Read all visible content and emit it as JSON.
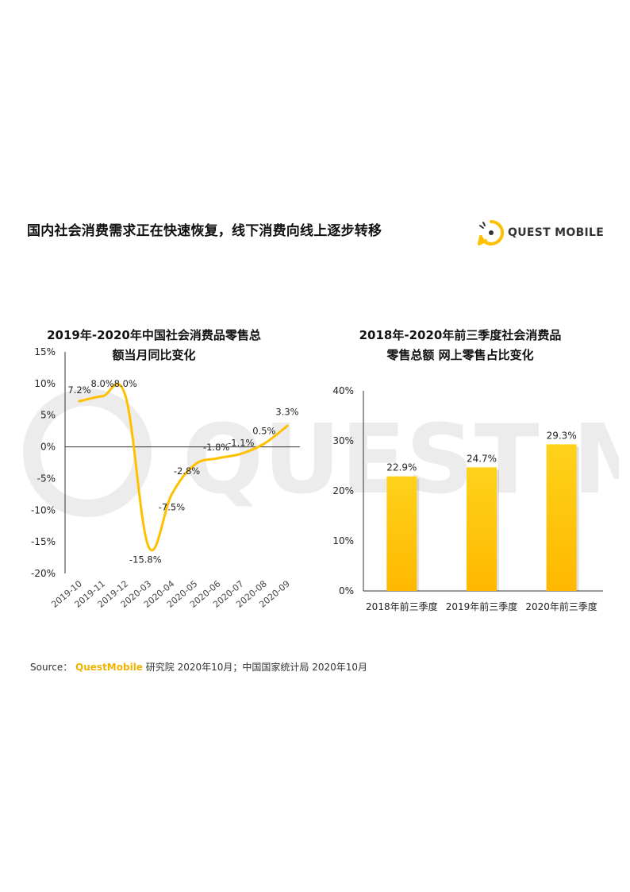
{
  "page": {
    "title": "国内社会消费需求正在快速恢复，线下消费向线上逐步转移",
    "logo_text": "QUEST MOBILE",
    "source_label": "Source：",
    "source_brand": "QuestMobile",
    "source_rest": " 研究院 2020年10月；中国国家统计局 2020年10月",
    "accent_color": "#ffc000"
  },
  "chart_data": [
    {
      "type": "line",
      "title_line1": "2019年-2020年中国社会消费品零售总",
      "title_line2": "额当月同比变化",
      "categories": [
        "2019-10",
        "2019-11",
        "2019-12",
        "2020-03",
        "2020-04",
        "2020-05",
        "2020-06",
        "2020-07",
        "2020-08",
        "2020-09"
      ],
      "values": [
        7.2,
        8.0,
        8.0,
        -15.8,
        -7.5,
        -2.8,
        -1.8,
        -1.1,
        0.5,
        3.3
      ],
      "value_labels": [
        "7.2%",
        "8.0%",
        "8.0%",
        "-15.8%",
        "-7.5%",
        "-2.8%",
        "-1.8%",
        "-1.1%",
        "0.5%",
        "3.3%"
      ],
      "yticks": [
        "15%",
        "10%",
        "5%",
        "0%",
        "-5%",
        "-10%",
        "-15%",
        "-20%"
      ],
      "ylim": [
        -20,
        15
      ],
      "color": "#ffc000"
    },
    {
      "type": "bar",
      "title_line1": "2018年-2020年前三季度社会消费品",
      "title_line2": "零售总额 网上零售占比变化",
      "categories": [
        "2018年前三季度",
        "2019年前三季度",
        "2020年前三季度"
      ],
      "values": [
        22.9,
        24.7,
        29.3
      ],
      "value_labels": [
        "22.9%",
        "24.7%",
        "29.3%"
      ],
      "yticks": [
        "40%",
        "30%",
        "20%",
        "10%",
        "0%"
      ],
      "ylim": [
        0,
        40
      ],
      "color": "#ffc000"
    }
  ]
}
